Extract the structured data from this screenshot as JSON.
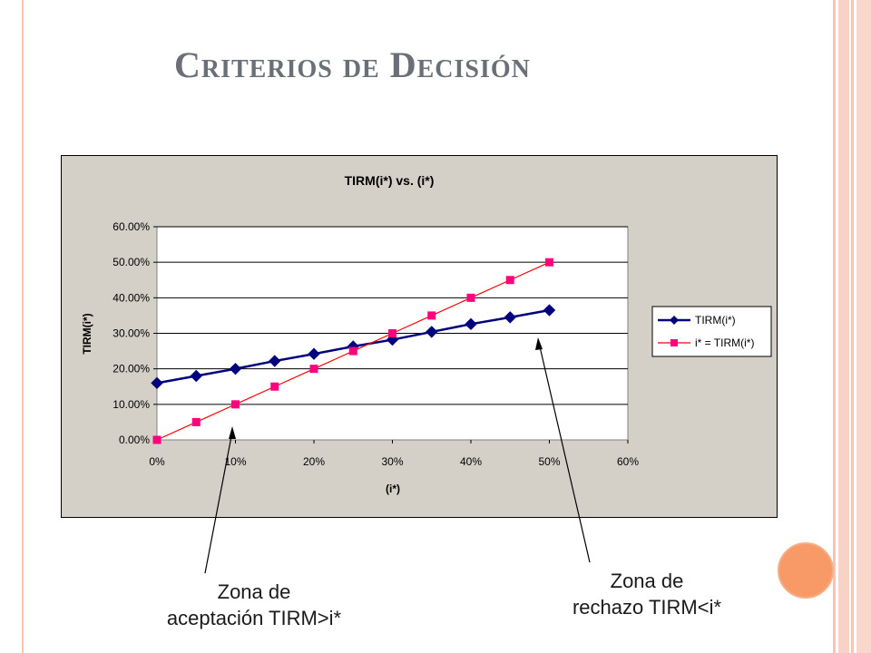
{
  "slide": {
    "title": "Criterios de Decisión",
    "annotation_left_line1": "Zona de",
    "annotation_left_line2": "aceptación TIRM>i*",
    "annotation_right_line1": "Zona de",
    "annotation_right_line2": "rechazo TIRM<i*"
  },
  "colors": {
    "chart_background": "#d4d0c8",
    "plot_background": "#ffffff",
    "series1": "#00007f",
    "series2_line": "#ff0000",
    "series2_marker": "#ff007f",
    "accent_circle": "#f79a67",
    "stripes": "#f8d3c5"
  },
  "chart_data": {
    "type": "line",
    "title": "TIRM(i*) vs. (i*)",
    "xlabel": "(i*)",
    "ylabel": "TIRM(i*)",
    "x": [
      0,
      5,
      10,
      15,
      20,
      25,
      30,
      35,
      40,
      45,
      50
    ],
    "xlim": [
      0,
      60
    ],
    "ylim": [
      0,
      60
    ],
    "x_ticks": [
      "0%",
      "10%",
      "20%",
      "30%",
      "40%",
      "50%",
      "60%"
    ],
    "y_ticks": [
      "0.00%",
      "10.00%",
      "20.00%",
      "30.00%",
      "40.00%",
      "50.00%",
      "60.00%"
    ],
    "series": [
      {
        "name": "TIRM(i*)",
        "marker": "diamond",
        "values": [
          16,
          18,
          20,
          22.2,
          24.2,
          26.3,
          28.2,
          30.4,
          32.6,
          34.5,
          36.5
        ]
      },
      {
        "name": "i* = TIRM(i*)",
        "marker": "square",
        "values": [
          0,
          5,
          10,
          15,
          20,
          25,
          30,
          35,
          40,
          45,
          50
        ]
      }
    ],
    "grid": "horizontal",
    "legend": "right"
  }
}
